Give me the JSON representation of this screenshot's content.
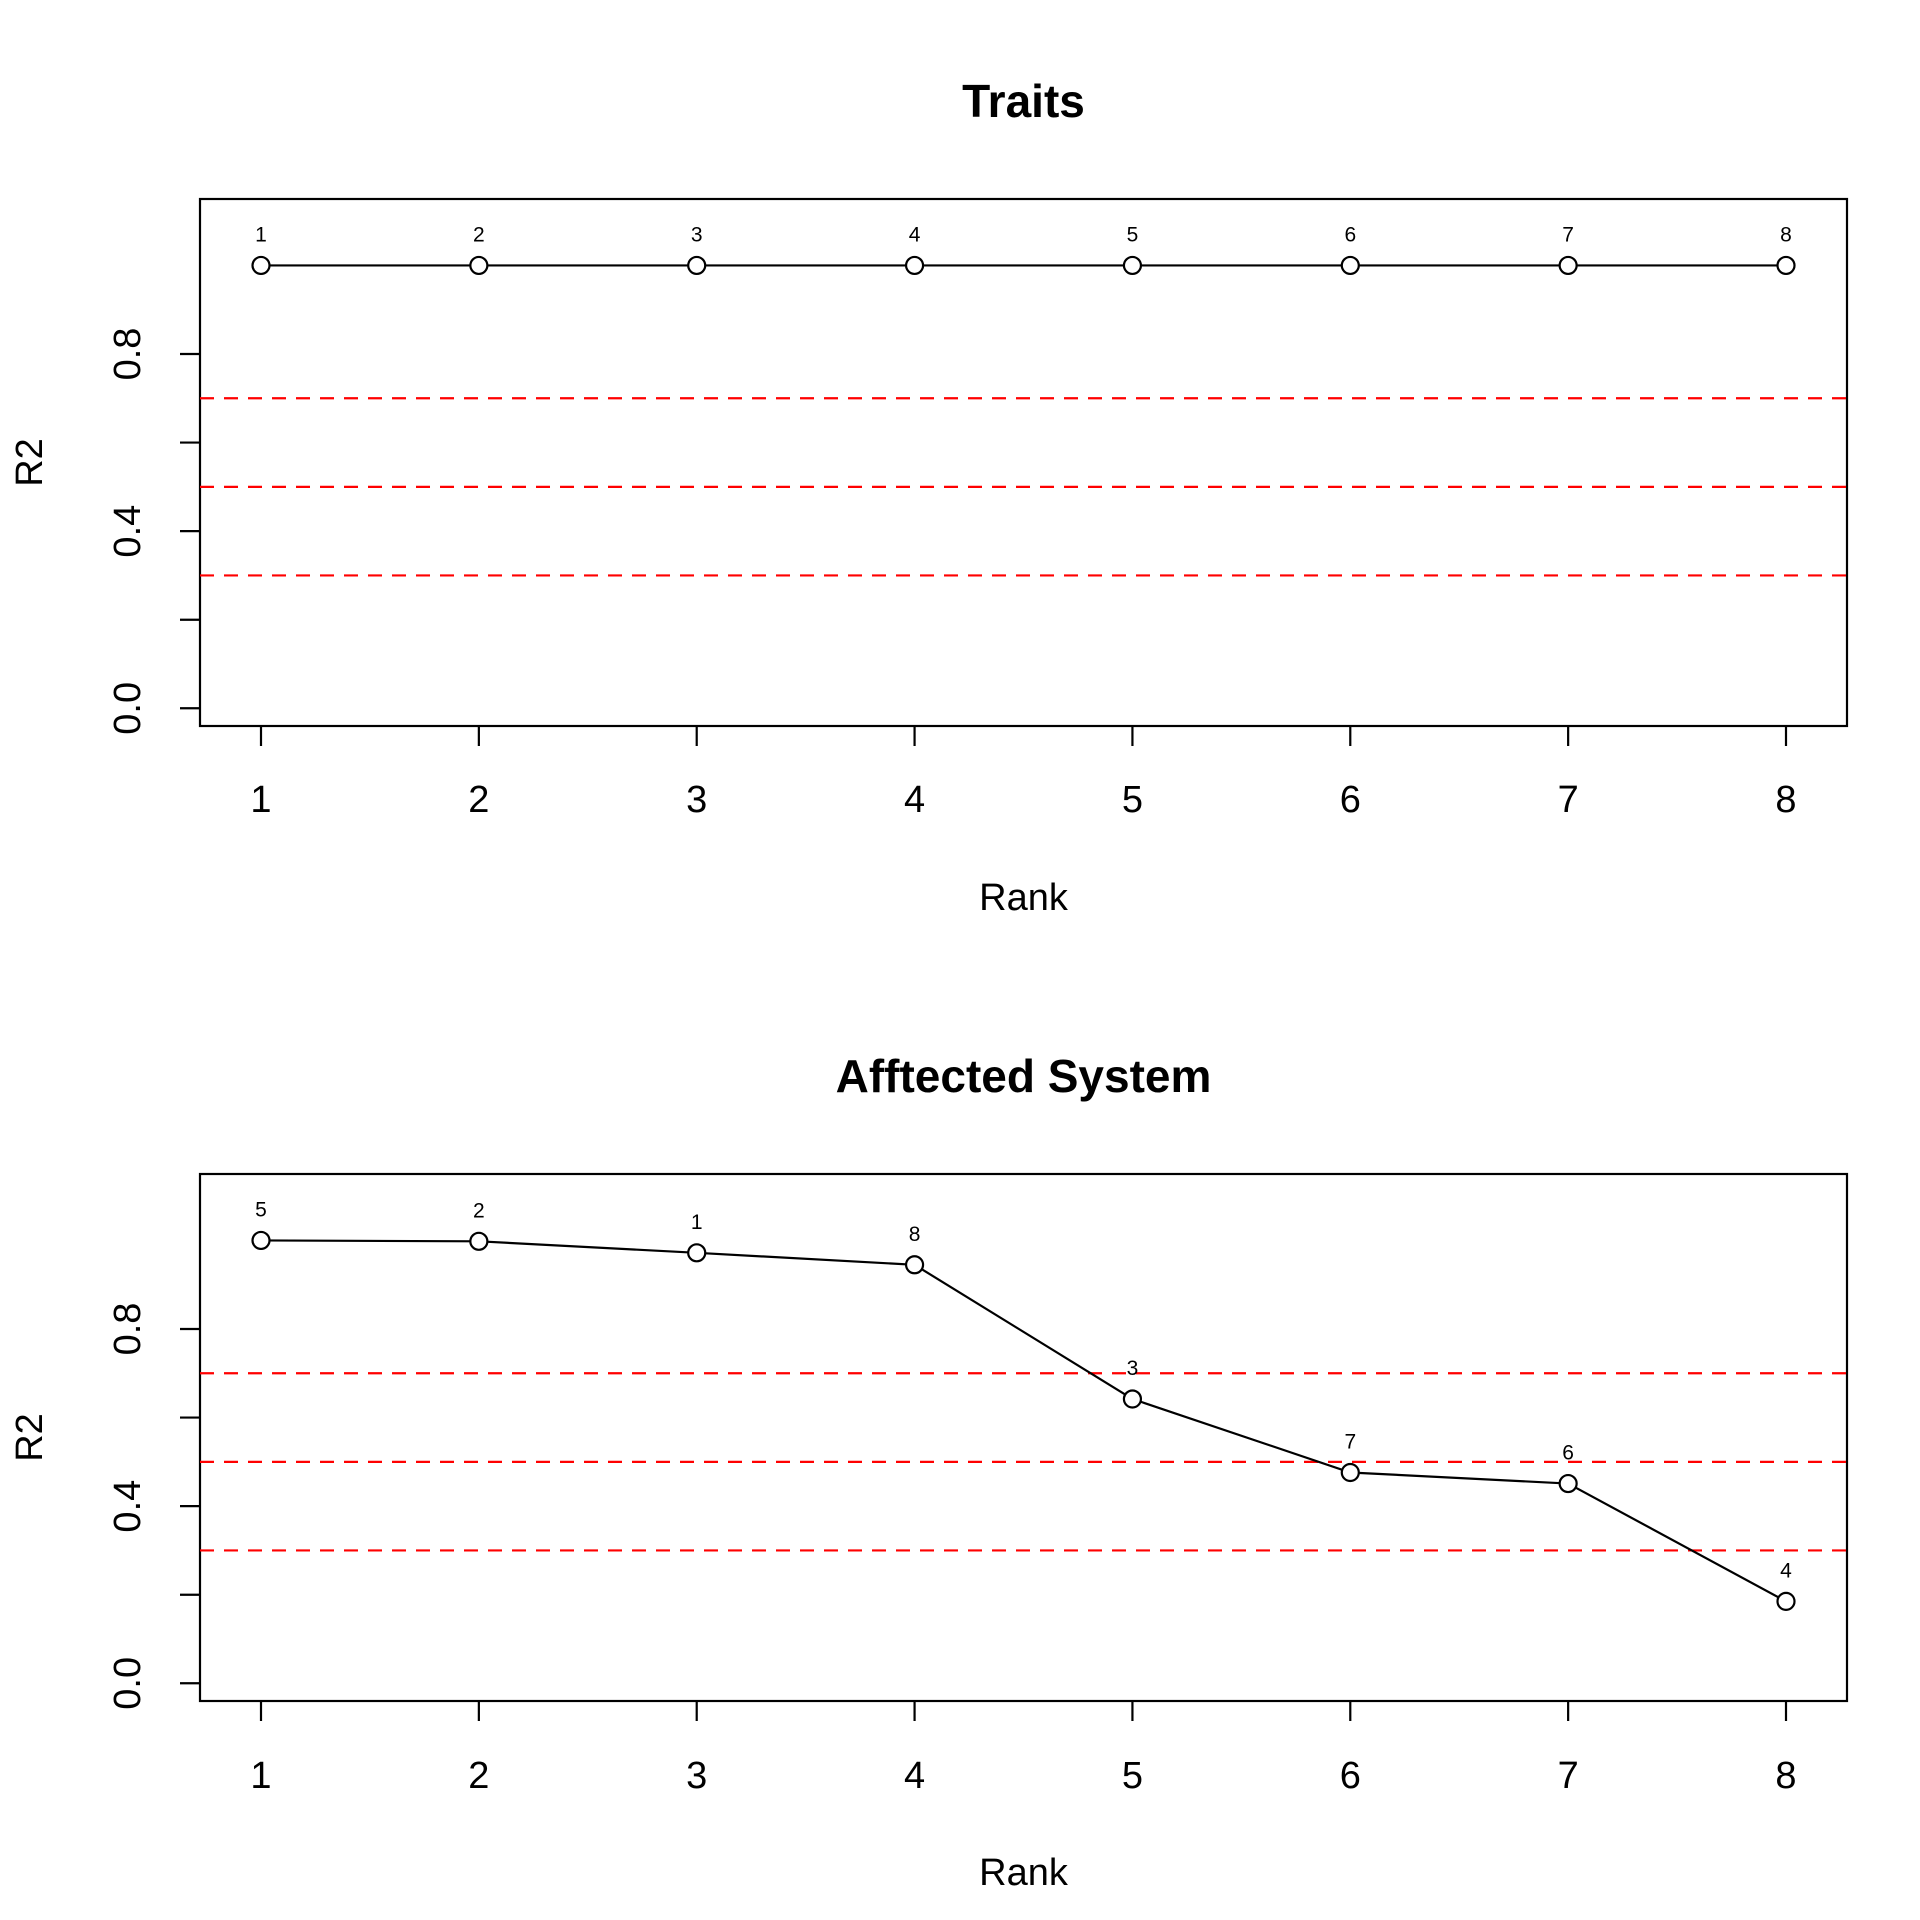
{
  "chart_data": [
    {
      "type": "line",
      "title": "Traits",
      "xlabel": "Rank",
      "ylabel": "R2",
      "x": [
        1,
        2,
        3,
        4,
        5,
        6,
        7,
        8
      ],
      "x_ticks": [
        "1",
        "2",
        "3",
        "4",
        "5",
        "6",
        "7",
        "8"
      ],
      "y_ticks": [
        "0.0",
        "0.4",
        "0.8"
      ],
      "y_minor_ticks": [
        0.2,
        0.6
      ],
      "xlim": [
        0.72,
        8.28
      ],
      "ylim": [
        -0.04,
        1.15
      ],
      "reference_lines": {
        "values": [
          0.3,
          0.5,
          0.7
        ],
        "color": "#ff0000",
        "style": "dashed"
      },
      "series": [
        {
          "values": [
            1.0,
            1.0,
            1.0,
            1.0,
            1.0,
            1.0,
            1.0,
            1.0
          ],
          "point_labels": [
            "1",
            "2",
            "3",
            "4",
            "5",
            "6",
            "7",
            "8"
          ]
        }
      ],
      "grid": false,
      "marker": "open-circle"
    },
    {
      "type": "line",
      "title": "Afftected System",
      "xlabel": "Rank",
      "ylabel": "R2",
      "x": [
        1,
        2,
        3,
        4,
        5,
        6,
        7,
        8
      ],
      "x_ticks": [
        "1",
        "2",
        "3",
        "4",
        "5",
        "6",
        "7",
        "8"
      ],
      "y_ticks": [
        "0.0",
        "0.4",
        "0.8"
      ],
      "y_minor_ticks": [
        0.2,
        0.6
      ],
      "xlim": [
        0.72,
        8.28
      ],
      "ylim": [
        -0.04,
        1.15
      ],
      "reference_lines": {
        "values": [
          0.3,
          0.5,
          0.7
        ],
        "color": "#ff0000",
        "style": "dashed"
      },
      "series": [
        {
          "values": [
            1.0,
            0.998,
            0.972,
            0.945,
            0.642,
            0.476,
            0.451,
            0.185
          ],
          "point_labels": [
            "5",
            "2",
            "1",
            "8",
            "3",
            "7",
            "6",
            "4"
          ]
        }
      ],
      "grid": false,
      "marker": "open-circle"
    }
  ]
}
